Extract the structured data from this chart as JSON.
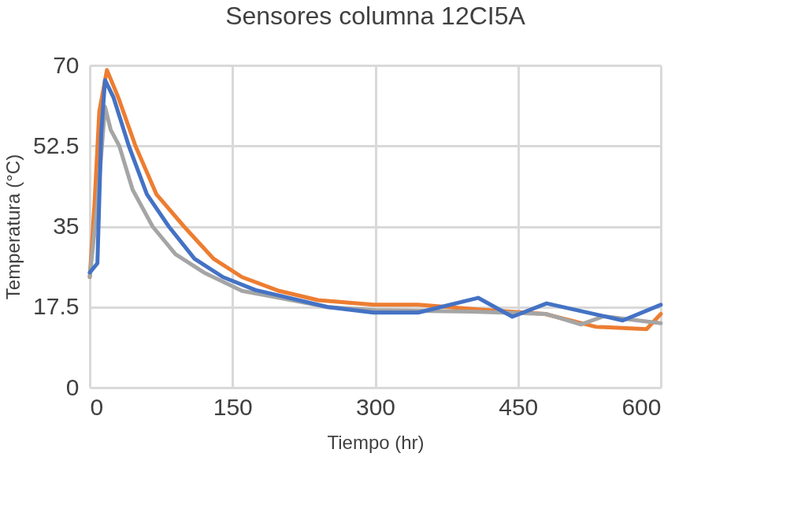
{
  "chart_data": {
    "type": "line",
    "title": "Sensores columna 12CI5A",
    "xlabel": "Tiempo (hr)",
    "ylabel": "Temperatura (°C)",
    "xlim": [
      0,
      600
    ],
    "xticks": [
      0,
      150,
      300,
      450,
      600
    ],
    "ylim": [
      0,
      70
    ],
    "yticks": [
      0,
      17.5,
      35,
      52.5,
      70
    ],
    "grid": true,
    "legend": false,
    "marker": "none",
    "line_style": "solid",
    "series": [
      {
        "color": "#ed7d31",
        "x": [
          0,
          5,
          10,
          18,
          30,
          48,
          70,
          99,
          130,
          160,
          199,
          240,
          298,
          345,
          408,
          478,
          532,
          585,
          600
        ],
        "values": [
          24,
          40,
          60,
          69,
          63,
          52.5,
          42,
          35,
          28,
          24,
          21,
          19,
          18,
          18,
          17,
          16,
          13.2,
          12.7,
          16
        ]
      },
      {
        "color": "#a5a5a5",
        "x": [
          0,
          8,
          16,
          22,
          31,
          45,
          66,
          90,
          120,
          160,
          199,
          250,
          300,
          400,
          480,
          516,
          540,
          600
        ],
        "values": [
          24,
          40,
          61,
          56,
          52.5,
          43,
          35,
          29,
          25,
          21,
          19.5,
          17.5,
          16.8,
          16.5,
          16,
          13.7,
          15.5,
          14
        ]
      },
      {
        "color": "#4472c4",
        "x": [
          0,
          8,
          12,
          16,
          25,
          41,
          60,
          83,
          110,
          140,
          174,
          199,
          250,
          298,
          345,
          408,
          444,
          480,
          560,
          600
        ],
        "values": [
          25,
          27,
          55,
          66.8,
          63,
          52.5,
          42,
          35,
          28,
          24,
          21.2,
          20,
          17.5,
          16.3,
          16.3,
          19.5,
          15.4,
          18.3,
          14.6,
          18
        ]
      }
    ]
  }
}
